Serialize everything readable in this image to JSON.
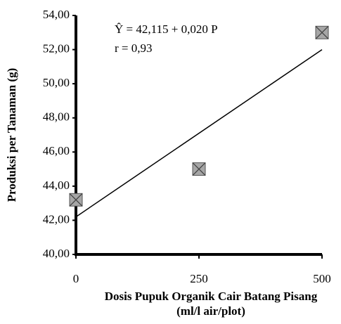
{
  "chart_data": {
    "type": "scatter",
    "xlabel": [
      "Dosis Pupuk Organik Cair Batang Pisang",
      "(ml/l air/plot)"
    ],
    "ylabel": "Produksi per Tanaman (g)",
    "annotations": [
      "Ŷ  = 42,115  + 0,020 P",
      "r  = 0,93"
    ],
    "x": [
      0,
      250,
      500
    ],
    "values": [
      43.2,
      45.0,
      53.0
    ],
    "color": "#a6a6a6",
    "trendline": {
      "x": [
        0,
        500
      ],
      "values": [
        42.2,
        52.0
      ],
      "color": "#000000"
    },
    "xlim": [
      0,
      500
    ],
    "xticks": [
      0,
      250,
      500
    ],
    "ylim": [
      40,
      54
    ],
    "yticks": [
      {
        "value": 40,
        "label": "40,00"
      },
      {
        "value": 42,
        "label": "42,00"
      },
      {
        "value": 44,
        "label": "44,00"
      },
      {
        "value": 46,
        "label": "46,00"
      },
      {
        "value": 48,
        "label": "48,00"
      },
      {
        "value": 50,
        "label": "50,00"
      },
      {
        "value": 52,
        "label": "52,00"
      },
      {
        "value": 54,
        "label": "54,00"
      }
    ],
    "grid": false
  }
}
